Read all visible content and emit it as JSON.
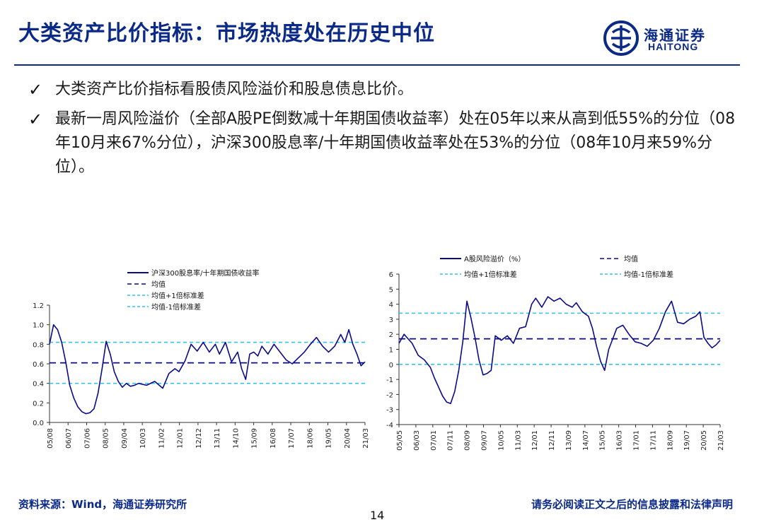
{
  "header": {
    "title": "大类资产比价指标：市场热度处在历史中位",
    "logo_cn": "海通证券",
    "logo_en": "HAITONG"
  },
  "bullets": [
    "大类资产比价指标看股债风险溢价和股息债息比价。",
    "最新一周风险溢价（全部A股PE倒数减十年期国债收益率）处在05年以来从高到低55%的分位（08年10月来67%分位），沪深300股息率/十年期国债收益率处在53%的分位（08年10月来59%分位）。"
  ],
  "footer": {
    "source": "资料来源：Wind，海通证券研究所",
    "disclaimer": "请务必阅读正文之后的信息披露和法律声明",
    "page": "14"
  },
  "colors": {
    "brand": "#0b2a88",
    "series": "#0a0a8c",
    "band": "#2fc4ee"
  },
  "chart_data": [
    {
      "type": "line",
      "ylim": [
        0.0,
        1.2
      ],
      "yticks": [
        "0.0",
        "0.2",
        "0.4",
        "0.6",
        "0.8",
        "1.0",
        "1.2"
      ],
      "xticks": [
        "05/08",
        "06/07",
        "07/06",
        "08/05",
        "09/04",
        "10/03",
        "11/02",
        "12/01",
        "12/12",
        "13/11",
        "14/10",
        "15/09",
        "16/08",
        "17/07",
        "18/06",
        "19/05",
        "20/04",
        "21/03"
      ],
      "legend": [
        "沪深300股息率/十年期国债收益率",
        "均值",
        "均值+1倍标准差",
        "均值-1倍标准差"
      ],
      "hlines": {
        "mean": 0.61,
        "upper": 0.82,
        "lower": 0.4
      },
      "series": [
        {
          "name": "沪深300股息率/十年期国债收益率",
          "x": [
            2005.6,
            2005.8,
            2006.0,
            2006.2,
            2006.4,
            2006.6,
            2006.8,
            2007.0,
            2007.2,
            2007.4,
            2007.6,
            2007.8,
            2008.0,
            2008.2,
            2008.4,
            2008.6,
            2008.8,
            2009.0,
            2009.2,
            2009.4,
            2009.6,
            2009.8,
            2010.0,
            2010.4,
            2010.8,
            2011.2,
            2011.5,
            2011.8,
            2012.0,
            2012.3,
            2012.6,
            2012.9,
            2013.2,
            2013.5,
            2013.8,
            2014.0,
            2014.3,
            2014.6,
            2014.9,
            2015.1,
            2015.3,
            2015.5,
            2015.7,
            2015.9,
            2016.1,
            2016.4,
            2016.7,
            2017.0,
            2017.3,
            2017.6,
            2017.9,
            2018.2,
            2018.5,
            2018.8,
            2019.1,
            2019.4,
            2019.7,
            2020.0,
            2020.2,
            2020.4,
            2020.6,
            2020.8,
            2021.0,
            2021.2
          ],
          "y": [
            0.8,
            1.0,
            0.95,
            0.82,
            0.62,
            0.38,
            0.25,
            0.16,
            0.11,
            0.09,
            0.1,
            0.14,
            0.3,
            0.55,
            0.83,
            0.7,
            0.52,
            0.42,
            0.36,
            0.4,
            0.37,
            0.38,
            0.4,
            0.38,
            0.42,
            0.35,
            0.5,
            0.55,
            0.52,
            0.63,
            0.8,
            0.73,
            0.82,
            0.72,
            0.8,
            0.7,
            0.82,
            0.62,
            0.72,
            0.55,
            0.44,
            0.7,
            0.72,
            0.68,
            0.78,
            0.7,
            0.8,
            0.72,
            0.64,
            0.6,
            0.66,
            0.72,
            0.8,
            0.87,
            0.78,
            0.72,
            0.78,
            0.9,
            0.82,
            0.95,
            0.8,
            0.7,
            0.58,
            0.62
          ]
        }
      ]
    },
    {
      "type": "line",
      "ylim": [
        -4,
        6
      ],
      "yticks": [
        "-4",
        "-3",
        "-2",
        "-1",
        "0",
        "1",
        "2",
        "3",
        "4",
        "5",
        "6"
      ],
      "xticks": [
        "05/05",
        "06/03",
        "07/01",
        "07/11",
        "08/09",
        "09/07",
        "10/05",
        "11/03",
        "12/01",
        "12/11",
        "13/09",
        "14/07",
        "15/05",
        "16/03",
        "17/01",
        "17/11",
        "18/09",
        "19/07",
        "20/05",
        "21/03"
      ],
      "legend": [
        "A股风险溢价（%）",
        "均值",
        "均值+1倍标准差",
        "均值-1倍标准差"
      ],
      "hlines": {
        "mean": 1.7,
        "upper": 3.4,
        "lower": 0.0
      },
      "series": [
        {
          "name": "A股风险溢价（%）",
          "x": [
            2005.35,
            2005.6,
            2005.8,
            2006.0,
            2006.3,
            2006.6,
            2006.9,
            2007.1,
            2007.3,
            2007.5,
            2007.7,
            2007.9,
            2008.1,
            2008.3,
            2008.5,
            2008.7,
            2008.9,
            2009.1,
            2009.3,
            2009.5,
            2009.7,
            2009.9,
            2010.1,
            2010.4,
            2010.7,
            2011.0,
            2011.3,
            2011.6,
            2011.9,
            2012.1,
            2012.4,
            2012.7,
            2013.0,
            2013.3,
            2013.6,
            2013.9,
            2014.1,
            2014.4,
            2014.7,
            2014.9,
            2015.1,
            2015.3,
            2015.5,
            2015.7,
            2015.9,
            2016.1,
            2016.4,
            2016.7,
            2017.0,
            2017.3,
            2017.6,
            2017.9,
            2018.2,
            2018.5,
            2018.8,
            2019.1,
            2019.4,
            2019.7,
            2020.0,
            2020.2,
            2020.4,
            2020.6,
            2020.8,
            2021.0,
            2021.2
          ],
          "y": [
            1.4,
            2.0,
            1.7,
            1.4,
            0.6,
            0.3,
            -0.2,
            -0.9,
            -1.5,
            -2.1,
            -2.5,
            -2.6,
            -1.8,
            -0.4,
            1.5,
            4.2,
            3.1,
            1.8,
            0.3,
            -0.7,
            -0.6,
            -0.4,
            1.9,
            1.6,
            1.9,
            1.4,
            2.4,
            2.5,
            4.0,
            4.4,
            3.8,
            4.5,
            4.2,
            4.4,
            4.0,
            3.8,
            4.1,
            3.5,
            3.2,
            2.4,
            1.2,
            0.2,
            -0.4,
            1.0,
            1.7,
            2.4,
            2.6,
            2.0,
            1.5,
            1.4,
            1.2,
            1.6,
            2.4,
            3.5,
            4.2,
            2.8,
            2.7,
            3.0,
            3.2,
            3.5,
            1.8,
            1.4,
            1.1,
            1.3,
            1.6
          ]
        }
      ]
    }
  ]
}
